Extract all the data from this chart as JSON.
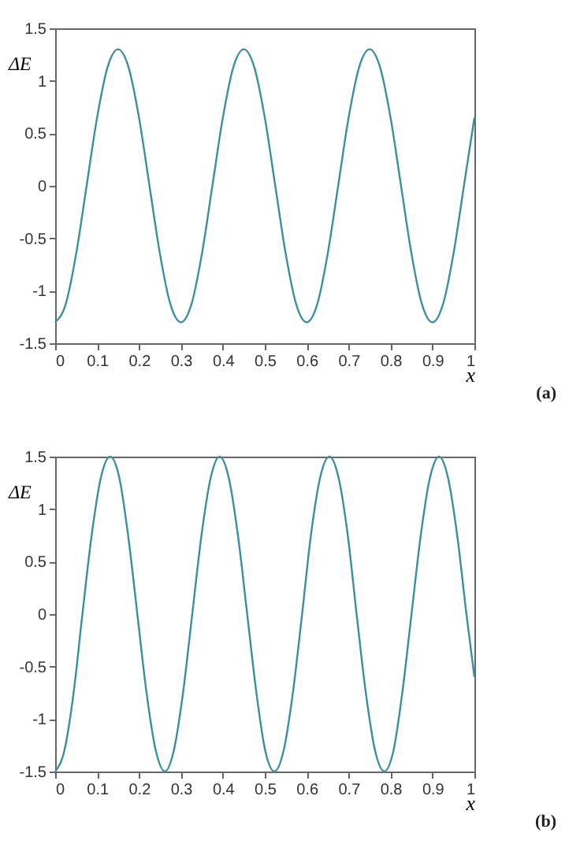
{
  "chart_data": [
    {
      "type": "line",
      "xlabel": "x",
      "ylabel": "ΔE",
      "annotations": [
        "(a)"
      ],
      "xlim": [
        0,
        1
      ],
      "ylim": [
        -1.5,
        1.5
      ],
      "xticks": [
        0,
        0.1,
        0.2,
        0.3,
        0.4,
        0.5,
        0.6,
        0.7,
        0.8,
        0.9,
        1
      ],
      "yticks": [
        -1.5,
        -1,
        -0.5,
        0,
        0.5,
        1,
        1.5
      ],
      "grid": false,
      "x": [
        0,
        0.025,
        0.05,
        0.075,
        0.1,
        0.125,
        0.15,
        0.175,
        0.2,
        0.225,
        0.25,
        0.275,
        0.3,
        0.325,
        0.35,
        0.375,
        0.4,
        0.425,
        0.45,
        0.475,
        0.5,
        0.525,
        0.55,
        0.575,
        0.6,
        0.625,
        0.65,
        0.675,
        0.7,
        0.725,
        0.75,
        0.775,
        0.8,
        0.825,
        0.85,
        0.875,
        0.9,
        0.925,
        0.95,
        0.975,
        1
      ],
      "series": [
        {
          "color": "#3b8fa3",
          "values": [
            -1.3,
            -1.13,
            -0.65,
            0,
            0.65,
            1.13,
            1.3,
            1.13,
            0.65,
            0,
            -0.65,
            -1.13,
            -1.3,
            -1.13,
            -0.65,
            0,
            0.65,
            1.13,
            1.3,
            1.13,
            0.65,
            0,
            -0.65,
            -1.13,
            -1.3,
            -1.13,
            -0.65,
            0,
            0.65,
            1.13,
            1.3,
            1.13,
            0.65,
            0,
            -0.65,
            -1.13,
            -1.3,
            -1.13,
            -0.65,
            0,
            0.65
          ]
        }
      ]
    },
    {
      "type": "line",
      "xlabel": "x",
      "ylabel": "ΔE",
      "annotations": [
        "(b)"
      ],
      "xlim": [
        0,
        1
      ],
      "ylim": [
        -1.5,
        1.5
      ],
      "xticks": [
        0,
        0.1,
        0.2,
        0.3,
        0.4,
        0.5,
        0.6,
        0.7,
        0.8,
        0.9,
        1
      ],
      "yticks": [
        -1.5,
        -1,
        -0.5,
        0,
        0.5,
        1,
        1.5
      ],
      "grid": false,
      "x": [
        0,
        0.022,
        0.044,
        0.065,
        0.087,
        0.109,
        0.131,
        0.153,
        0.174,
        0.196,
        0.218,
        0.24,
        0.262,
        0.283,
        0.305,
        0.327,
        0.349,
        0.371,
        0.392,
        0.414,
        0.436,
        0.458,
        0.48,
        0.501,
        0.523,
        0.545,
        0.567,
        0.589,
        0.61,
        0.632,
        0.654,
        0.676,
        0.698,
        0.719,
        0.741,
        0.763,
        0.785,
        0.807,
        0.828,
        0.85,
        0.872,
        0.894,
        0.916,
        0.937,
        0.959,
        0.981,
        1
      ],
      "series": [
        {
          "color": "#3b8fa3",
          "values": [
            -1.5,
            -1.3,
            -0.75,
            0,
            0.75,
            1.3,
            1.5,
            1.3,
            0.75,
            0,
            -0.75,
            -1.3,
            -1.5,
            -1.3,
            -0.75,
            0,
            0.75,
            1.3,
            1.5,
            1.3,
            0.75,
            0,
            -0.75,
            -1.3,
            -1.5,
            -1.3,
            -0.75,
            0,
            0.75,
            1.3,
            1.5,
            1.3,
            0.75,
            0,
            -0.75,
            -1.3,
            -1.5,
            -1.3,
            -0.75,
            0,
            0.75,
            1.3,
            1.5,
            1.3,
            0.75,
            0,
            -0.6
          ]
        }
      ]
    }
  ]
}
